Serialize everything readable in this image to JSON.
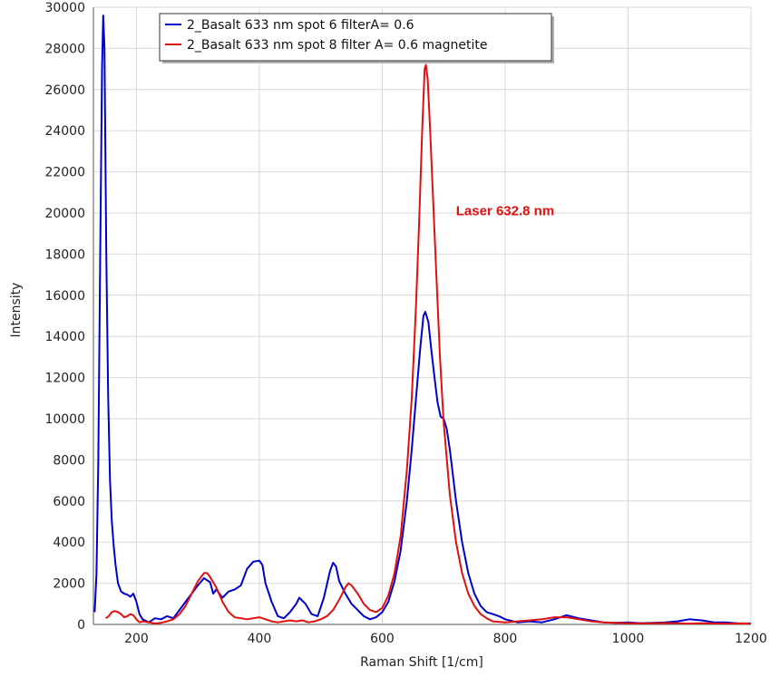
{
  "chart_data": {
    "type": "line",
    "xlabel": "Raman Shift [1/cm]",
    "ylabel": "Intensity",
    "xlim": [
      130,
      1200
    ],
    "ylim": [
      0,
      30000
    ],
    "xticks": [
      200,
      400,
      600,
      800,
      1000,
      1200
    ],
    "yticks": [
      0,
      2000,
      4000,
      6000,
      8000,
      10000,
      12000,
      14000,
      16000,
      18000,
      20000,
      22000,
      24000,
      26000,
      28000,
      30000
    ],
    "grid": true,
    "legend_position": "top",
    "annotation": {
      "text": "Laser 632.8 nm",
      "x": 720,
      "y": 19900,
      "color": "#e01010"
    },
    "series": [
      {
        "name": "2_Basalt 633 nm spot 6 filterA= 0.6",
        "color": "#0000cc",
        "points": [
          [
            132,
            600
          ],
          [
            135,
            2500
          ],
          [
            138,
            8000
          ],
          [
            141,
            18000
          ],
          [
            144,
            27000
          ],
          [
            146,
            29600
          ],
          [
            148,
            28000
          ],
          [
            151,
            18000
          ],
          [
            154,
            11000
          ],
          [
            157,
            7000
          ],
          [
            160,
            5000
          ],
          [
            163,
            3800
          ],
          [
            166,
            2900
          ],
          [
            170,
            2000
          ],
          [
            175,
            1600
          ],
          [
            180,
            1500
          ],
          [
            185,
            1450
          ],
          [
            190,
            1350
          ],
          [
            195,
            1500
          ],
          [
            200,
            1100
          ],
          [
            205,
            500
          ],
          [
            210,
            250
          ],
          [
            220,
            100
          ],
          [
            230,
            300
          ],
          [
            240,
            250
          ],
          [
            250,
            400
          ],
          [
            260,
            300
          ],
          [
            270,
            700
          ],
          [
            280,
            1100
          ],
          [
            290,
            1500
          ],
          [
            300,
            1900
          ],
          [
            310,
            2250
          ],
          [
            320,
            2050
          ],
          [
            325,
            1500
          ],
          [
            330,
            1700
          ],
          [
            340,
            1300
          ],
          [
            350,
            1600
          ],
          [
            360,
            1700
          ],
          [
            370,
            1900
          ],
          [
            380,
            2700
          ],
          [
            390,
            3050
          ],
          [
            400,
            3100
          ],
          [
            405,
            2900
          ],
          [
            410,
            2000
          ],
          [
            420,
            1100
          ],
          [
            430,
            400
          ],
          [
            440,
            300
          ],
          [
            450,
            600
          ],
          [
            460,
            1000
          ],
          [
            465,
            1300
          ],
          [
            475,
            1000
          ],
          [
            485,
            500
          ],
          [
            495,
            400
          ],
          [
            505,
            1300
          ],
          [
            515,
            2600
          ],
          [
            520,
            3000
          ],
          [
            525,
            2800
          ],
          [
            530,
            2100
          ],
          [
            540,
            1500
          ],
          [
            550,
            1000
          ],
          [
            560,
            700
          ],
          [
            570,
            400
          ],
          [
            580,
            250
          ],
          [
            590,
            350
          ],
          [
            600,
            600
          ],
          [
            610,
            1100
          ],
          [
            620,
            2100
          ],
          [
            630,
            3600
          ],
          [
            640,
            6000
          ],
          [
            648,
            8500
          ],
          [
            655,
            11000
          ],
          [
            662,
            13500
          ],
          [
            667,
            15000
          ],
          [
            670,
            15200
          ],
          [
            675,
            14700
          ],
          [
            680,
            13300
          ],
          [
            685,
            12000
          ],
          [
            690,
            10800
          ],
          [
            695,
            10100
          ],
          [
            700,
            10000
          ],
          [
            705,
            9500
          ],
          [
            710,
            8500
          ],
          [
            720,
            6000
          ],
          [
            730,
            4000
          ],
          [
            740,
            2500
          ],
          [
            750,
            1500
          ],
          [
            760,
            900
          ],
          [
            770,
            600
          ],
          [
            780,
            500
          ],
          [
            790,
            400
          ],
          [
            800,
            250
          ],
          [
            820,
            100
          ],
          [
            840,
            150
          ],
          [
            860,
            100
          ],
          [
            880,
            250
          ],
          [
            900,
            450
          ],
          [
            920,
            300
          ],
          [
            940,
            200
          ],
          [
            960,
            100
          ],
          [
            980,
            80
          ],
          [
            1000,
            100
          ],
          [
            1020,
            60
          ],
          [
            1040,
            80
          ],
          [
            1060,
            100
          ],
          [
            1080,
            150
          ],
          [
            1100,
            250
          ],
          [
            1120,
            200
          ],
          [
            1140,
            100
          ],
          [
            1160,
            100
          ],
          [
            1180,
            50
          ],
          [
            1200,
            50
          ]
        ]
      },
      {
        "name": "2_Basalt 633 nm spot 8 filter A= 0.6 magnetite",
        "color": "#e01010",
        "points": [
          [
            150,
            300
          ],
          [
            155,
            400
          ],
          [
            160,
            600
          ],
          [
            165,
            650
          ],
          [
            170,
            600
          ],
          [
            175,
            500
          ],
          [
            180,
            350
          ],
          [
            185,
            400
          ],
          [
            190,
            500
          ],
          [
            195,
            450
          ],
          [
            200,
            250
          ],
          [
            205,
            100
          ],
          [
            210,
            150
          ],
          [
            220,
            100
          ],
          [
            230,
            50
          ],
          [
            240,
            80
          ],
          [
            250,
            150
          ],
          [
            260,
            250
          ],
          [
            270,
            500
          ],
          [
            280,
            900
          ],
          [
            290,
            1500
          ],
          [
            300,
            2100
          ],
          [
            310,
            2500
          ],
          [
            315,
            2500
          ],
          [
            320,
            2300
          ],
          [
            330,
            1800
          ],
          [
            340,
            1100
          ],
          [
            350,
            600
          ],
          [
            360,
            350
          ],
          [
            370,
            300
          ],
          [
            380,
            250
          ],
          [
            390,
            300
          ],
          [
            400,
            350
          ],
          [
            410,
            250
          ],
          [
            420,
            150
          ],
          [
            430,
            100
          ],
          [
            440,
            150
          ],
          [
            450,
            200
          ],
          [
            460,
            150
          ],
          [
            470,
            200
          ],
          [
            480,
            100
          ],
          [
            490,
            150
          ],
          [
            500,
            250
          ],
          [
            510,
            400
          ],
          [
            520,
            700
          ],
          [
            530,
            1200
          ],
          [
            540,
            1800
          ],
          [
            545,
            2000
          ],
          [
            550,
            1900
          ],
          [
            560,
            1500
          ],
          [
            570,
            1000
          ],
          [
            580,
            700
          ],
          [
            590,
            600
          ],
          [
            600,
            800
          ],
          [
            610,
            1400
          ],
          [
            620,
            2500
          ],
          [
            630,
            4300
          ],
          [
            640,
            7500
          ],
          [
            648,
            11000
          ],
          [
            655,
            15500
          ],
          [
            660,
            19500
          ],
          [
            665,
            24000
          ],
          [
            669,
            27000
          ],
          [
            671,
            27200
          ],
          [
            674,
            26500
          ],
          [
            678,
            24000
          ],
          [
            683,
            20500
          ],
          [
            688,
            17000
          ],
          [
            694,
            13000
          ],
          [
            700,
            9800
          ],
          [
            710,
            6300
          ],
          [
            720,
            4000
          ],
          [
            730,
            2500
          ],
          [
            740,
            1500
          ],
          [
            750,
            900
          ],
          [
            760,
            500
          ],
          [
            770,
            300
          ],
          [
            780,
            150
          ],
          [
            800,
            100
          ],
          [
            820,
            150
          ],
          [
            840,
            200
          ],
          [
            860,
            250
          ],
          [
            880,
            350
          ],
          [
            900,
            350
          ],
          [
            920,
            250
          ],
          [
            940,
            150
          ],
          [
            960,
            100
          ],
          [
            980,
            80
          ],
          [
            1000,
            60
          ],
          [
            1020,
            50
          ],
          [
            1040,
            60
          ],
          [
            1060,
            70
          ],
          [
            1080,
            60
          ],
          [
            1100,
            40
          ],
          [
            1120,
            60
          ],
          [
            1140,
            50
          ],
          [
            1160,
            40
          ],
          [
            1180,
            50
          ],
          [
            1200,
            30
          ]
        ]
      }
    ]
  }
}
